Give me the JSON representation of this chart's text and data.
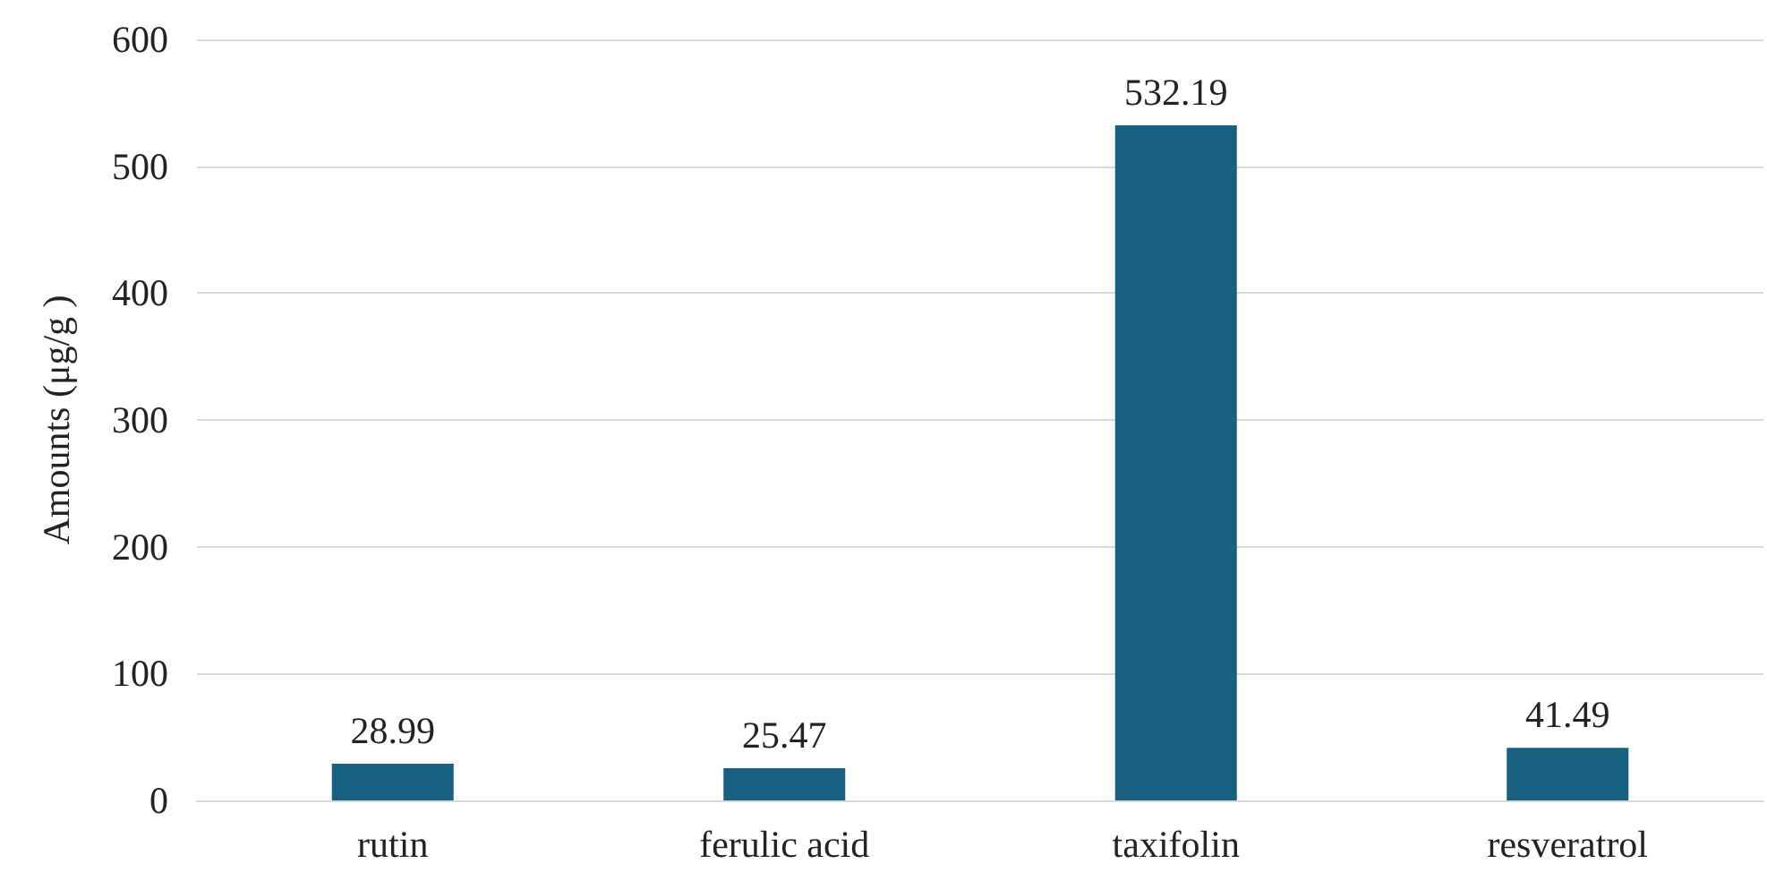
{
  "chart_data": {
    "type": "bar",
    "ylabel": "Amounts (μg/g )",
    "categories": [
      "rutin",
      "ferulic acid",
      "taxifolin",
      "resveratrol"
    ],
    "values": [
      28.99,
      25.47,
      532.19,
      41.49
    ],
    "color": "#17607f",
    "ylim": [
      0,
      600
    ],
    "yticks": [
      0,
      100,
      200,
      300,
      400,
      500,
      600
    ],
    "grid": "y",
    "data_labels": true
  }
}
